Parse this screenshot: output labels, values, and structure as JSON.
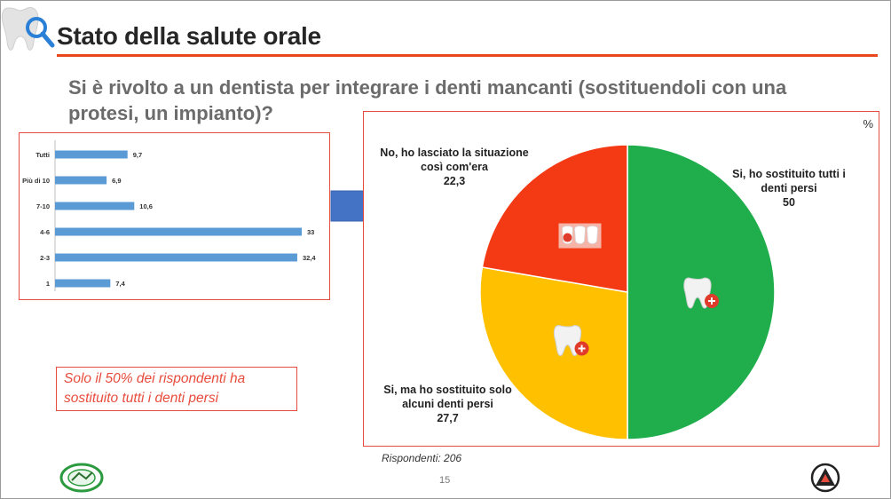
{
  "title": "Stato della salute orale",
  "question": "Si è rivolto a un dentista per integrare i denti mancanti (sostituendoli con una protesi, un impianto)?",
  "note": "Solo il 50% dei rispondenti ha sostituito tutti i denti persi",
  "respondents": "Rispondenti: 206",
  "page_number": "15",
  "colors": {
    "accent": "#e84c3d",
    "bar": "#5b9bd5",
    "arrow": "#4472c4",
    "pie_green": "#1fae4b",
    "pie_yellow": "#ffc000",
    "pie_red": "#f43a14"
  },
  "chart_data": [
    {
      "type": "bar",
      "orientation": "horizontal",
      "categories": [
        "Tutti",
        "Più di 10",
        "7-10",
        "4-6",
        "2-3",
        "1"
      ],
      "values": [
        9.7,
        6.9,
        10.6,
        33,
        32.4,
        7.4
      ],
      "value_labels": [
        "9,7",
        "6,9",
        "10,6",
        "33",
        "32,4",
        "7,4"
      ],
      "xlim": [
        0,
        33
      ],
      "grid": false
    },
    {
      "type": "pie",
      "unit_label": "%",
      "slices": [
        {
          "label": "Si, ho sostituito tutti i denti persi",
          "value": 50,
          "value_label": "50",
          "color": "#1fae4b",
          "icon": "tooth-plus-icon"
        },
        {
          "label": "Si, ma ho sostituito solo alcuni denti persi",
          "value": 27.7,
          "value_label": "27,7",
          "color": "#ffc000",
          "icon": "tooth-plus-icon"
        },
        {
          "label": "No, ho lasciato la situazione così com'era",
          "value": 22.3,
          "value_label": "22,3",
          "color": "#f43a14",
          "icon": "teeth-gap-icon"
        }
      ]
    }
  ]
}
